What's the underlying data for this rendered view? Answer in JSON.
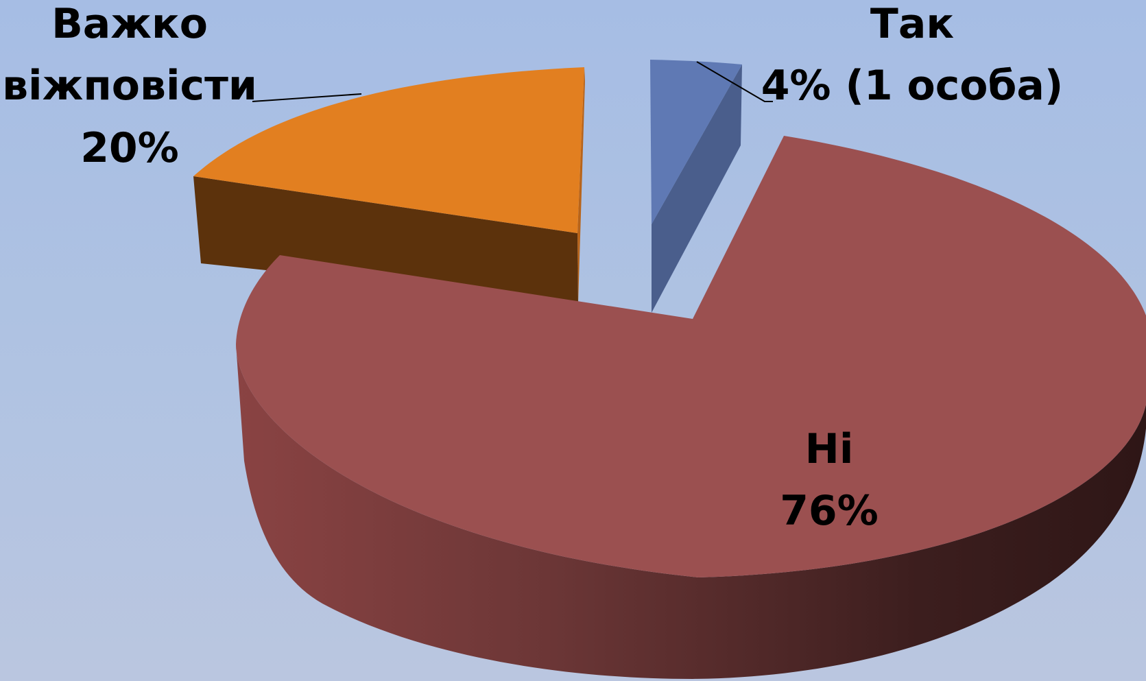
{
  "chart_data": {
    "type": "pie",
    "style": "3d-exploded",
    "slices": [
      {
        "key": "yes",
        "label": "Так",
        "value": 4,
        "value_label": "4% (1 особа)",
        "color": "#5f79b4"
      },
      {
        "key": "no",
        "label": "Ні",
        "value": 76,
        "value_label": "76%",
        "color": "#9b5050"
      },
      {
        "key": "hard",
        "label_lines": [
          "Важко",
          "віжповісти"
        ],
        "value": 20,
        "value_label": "20%",
        "color": "#e27f20"
      }
    ],
    "unit": "%",
    "legend": "none",
    "background_color": "#a9bfe4"
  }
}
